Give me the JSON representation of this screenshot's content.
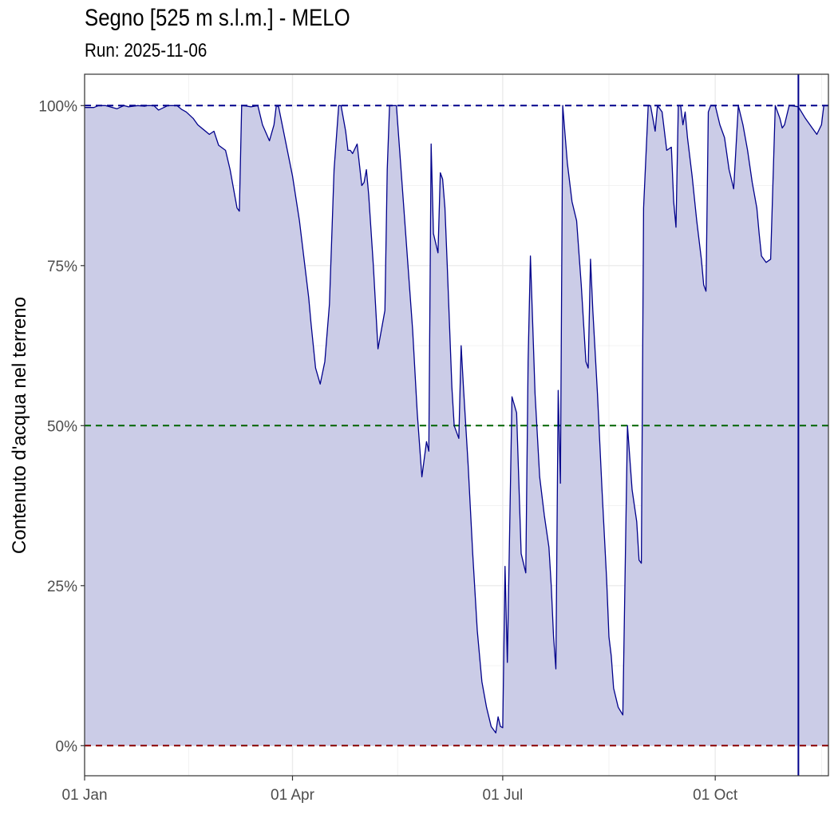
{
  "title": "Segno [525 m s.l.m.] - MELO",
  "subtitle": "Run: 2025-11-06",
  "chart_data": {
    "type": "area",
    "title": "Segno [525 m s.l.m.] - MELO",
    "subtitle": "Run: 2025-11-06",
    "xlabel": "",
    "ylabel": "Contenuto d'acqua nel terreno",
    "x_axis": {
      "type": "date",
      "ticks": [
        "01 Jan",
        "01 Apr",
        "01 Jul",
        "01 Oct"
      ],
      "tick_days": [
        1,
        91,
        182,
        274
      ],
      "range_days": [
        1,
        323
      ]
    },
    "y_axis": {
      "ticks": [
        "0%",
        "25%",
        "50%",
        "75%",
        "100%"
      ],
      "tick_values": [
        0,
        25,
        50,
        75,
        100
      ],
      "range": [
        -4.7,
        104.9
      ]
    },
    "grid": true,
    "reference_lines": [
      {
        "value": 100,
        "color": "#00008b",
        "style": "dashed"
      },
      {
        "value": 50,
        "color": "#006400",
        "style": "dashed"
      },
      {
        "value": 0,
        "color": "#8b0000",
        "style": "dashed"
      }
    ],
    "vertical_marker": {
      "date": "2025-11-06",
      "day": 310,
      "color": "#00008b"
    },
    "colors": {
      "line": "#00008b",
      "fill": "#cbcce7",
      "panel_border": "#333333",
      "grid": "#ebebeb"
    },
    "series": [
      {
        "x_day": [
          1,
          5,
          7,
          10,
          15,
          18,
          20,
          24,
          27,
          28,
          31,
          33,
          37,
          41,
          43,
          45,
          48,
          50,
          55,
          57,
          59,
          62,
          64,
          66,
          67,
          68,
          69,
          70,
          73,
          76,
          78,
          81,
          83,
          84,
          85,
          91,
          94,
          96,
          98,
          99,
          101,
          103,
          105,
          107,
          109,
          111,
          112,
          113,
          114,
          115,
          116,
          117,
          119,
          121,
          122,
          123,
          124,
          126,
          128,
          131,
          132,
          133,
          134,
          136,
          137,
          139,
          141,
          143,
          145,
          147,
          149,
          150,
          151,
          152,
          154,
          155,
          156,
          157,
          158,
          160,
          161,
          163,
          164,
          165,
          167,
          169,
          171,
          173,
          175,
          177,
          178,
          179,
          180,
          181,
          182,
          183,
          184,
          186,
          188,
          190,
          192,
          193,
          194,
          196,
          198,
          200,
          202,
          203,
          204,
          205,
          206,
          207,
          208,
          210,
          212,
          214,
          216,
          218,
          219,
          220,
          221,
          223,
          225,
          227,
          228,
          229,
          230,
          232,
          234,
          236,
          238,
          240,
          241,
          242,
          243,
          245,
          246,
          248,
          249,
          251,
          253,
          255,
          256,
          257,
          258,
          259,
          260,
          261,
          262,
          264,
          266,
          268,
          269,
          270,
          271,
          272,
          274,
          276,
          278,
          280,
          282,
          284,
          286,
          288,
          290,
          292,
          293,
          294,
          296,
          298,
          300,
          301,
          302,
          303,
          304,
          306,
          307,
          310,
          313,
          316,
          318,
          320,
          321,
          323
        ],
        "values": [
          99.7,
          99.7,
          100,
          100,
          99.5,
          100,
          99.8,
          100,
          99.9,
          100,
          100,
          99.3,
          100,
          100,
          99.4,
          99.0,
          98.0,
          97.0,
          95.5,
          96.0,
          93.8,
          93.0,
          90.0,
          86.0,
          84.0,
          83.5,
          100,
          100,
          99.8,
          100,
          97.0,
          94.5,
          97.0,
          100,
          99.8,
          89.0,
          82.0,
          76.0,
          70.0,
          66.0,
          59.0,
          56.5,
          60.0,
          69.0,
          90.0,
          100,
          100,
          98.0,
          96.0,
          93.0,
          93.0,
          92.5,
          94.0,
          87.5,
          88.0,
          90.0,
          86.0,
          75.0,
          62.0,
          68.0,
          90.0,
          100,
          100,
          100,
          95.0,
          85.0,
          75.0,
          65.0,
          52.0,
          42.0,
          47.5,
          46.0,
          94.0,
          80.0,
          77.0,
          89.5,
          88.5,
          84.0,
          75.0,
          56.0,
          50.0,
          48.0,
          62.5,
          56.0,
          44.0,
          30.0,
          18.0,
          10.0,
          6.0,
          3.0,
          2.5,
          2.0,
          4.5,
          3.0,
          2.8,
          28.0,
          13.0,
          54.5,
          52.0,
          30.0,
          27.0,
          60.0,
          76.5,
          55.0,
          42.0,
          36.0,
          31.0,
          25.0,
          17.0,
          12.0,
          55.5,
          41.0,
          100,
          91.0,
          85.0,
          82.0,
          72.0,
          60.0,
          59.0,
          76.0,
          68.0,
          55.0,
          40.0,
          26.0,
          17.0,
          14.0,
          9.0,
          6.0,
          4.8,
          50.0,
          40.0,
          35.0,
          29.0,
          28.5,
          84.0,
          100,
          100,
          96.0,
          100,
          99.0,
          93.0,
          93.5,
          85.0,
          81.0,
          100,
          100,
          97.0,
          99.0,
          95.0,
          89.0,
          82.0,
          76.0,
          72.0,
          71.0,
          99.0,
          100,
          100,
          97.0,
          95.0,
          90.0,
          87.0,
          100,
          97.0,
          93.0,
          88.0,
          84.0,
          80.0,
          76.5,
          75.5,
          76.0,
          100,
          99.0,
          98.0,
          96.5,
          97.0,
          100,
          100,
          99.8,
          98.0,
          96.5,
          95.5,
          97.0,
          100,
          100
        ]
      }
    ]
  }
}
